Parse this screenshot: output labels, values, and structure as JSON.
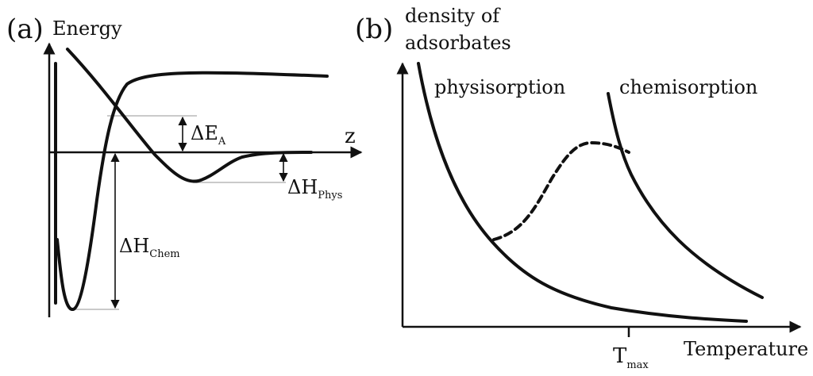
{
  "panel_a": {
    "tag": "(a)",
    "y_axis_label": "Energy",
    "x_axis_label": "z",
    "delta_ea": {
      "symbol": "ΔE",
      "sub": "A"
    },
    "delta_h_phys": {
      "symbol": "ΔH",
      "sub": "Phys"
    },
    "delta_h_chem": {
      "symbol": "ΔH",
      "sub": "Chem"
    }
  },
  "panel_b": {
    "tag": "(b)",
    "y_axis_label_line1": "density of",
    "y_axis_label_line2": "adsorbates",
    "x_axis_label": "Temperature",
    "curve_label_physisorption": "physisorption",
    "curve_label_chemisorption": "chemisorption",
    "tick_label": {
      "symbol": "T",
      "sub": "max"
    }
  }
}
